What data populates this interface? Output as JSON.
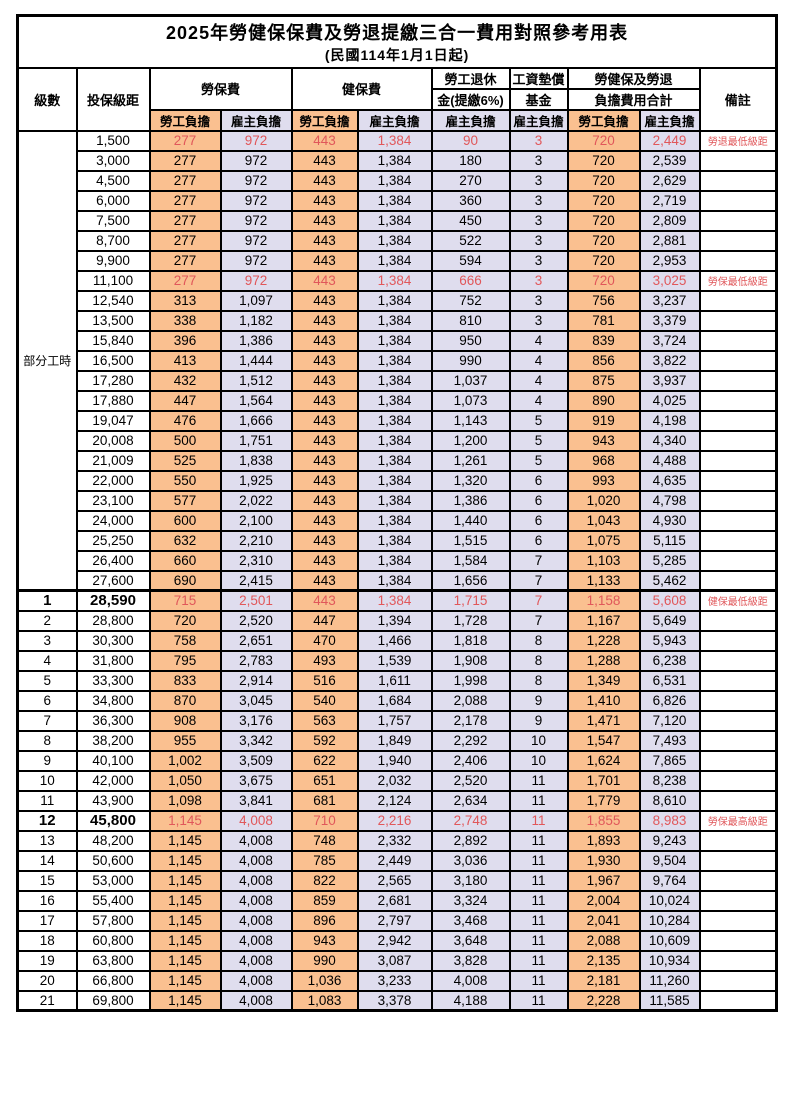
{
  "title": "2025年勞健保保費及勞退提繳三合一費用對照參考用表",
  "subtitle": "(民國114年1月1日起)",
  "headers": {
    "level": "級數",
    "bracket": "投保級距",
    "labor_fee": "勞保費",
    "health_fee": "健保費",
    "pension_line1": "勞工退休",
    "pension_line2": "金(提繳6%)",
    "wage_fund_line1": "工資墊償",
    "wage_fund_line2": "基金",
    "total_line1": "勞健保及勞退",
    "total_line2": "負擔費用合計",
    "note": "備註",
    "employee_share": "勞工負擔",
    "employer_share": "雇主負擔"
  },
  "part_time_label": "部分工時",
  "colors": {
    "employee_bg": "#FAC090",
    "employer_bg": "#DFDDEE",
    "highlight_text": "#E0575A"
  },
  "rows": [
    {
      "level": "",
      "bracket": "1,500",
      "values": [
        "277",
        "972",
        "443",
        "1,384",
        "90",
        "3",
        "720",
        "2,449"
      ],
      "note": "勞退最低級距",
      "highlight": true,
      "emph": false
    },
    {
      "level": "",
      "bracket": "3,000",
      "values": [
        "277",
        "972",
        "443",
        "1,384",
        "180",
        "3",
        "720",
        "2,539"
      ],
      "note": "",
      "highlight": false,
      "emph": false
    },
    {
      "level": "",
      "bracket": "4,500",
      "values": [
        "277",
        "972",
        "443",
        "1,384",
        "270",
        "3",
        "720",
        "2,629"
      ],
      "note": "",
      "highlight": false,
      "emph": false
    },
    {
      "level": "",
      "bracket": "6,000",
      "values": [
        "277",
        "972",
        "443",
        "1,384",
        "360",
        "3",
        "720",
        "2,719"
      ],
      "note": "",
      "highlight": false,
      "emph": false
    },
    {
      "level": "",
      "bracket": "7,500",
      "values": [
        "277",
        "972",
        "443",
        "1,384",
        "450",
        "3",
        "720",
        "2,809"
      ],
      "note": "",
      "highlight": false,
      "emph": false
    },
    {
      "level": "",
      "bracket": "8,700",
      "values": [
        "277",
        "972",
        "443",
        "1,384",
        "522",
        "3",
        "720",
        "2,881"
      ],
      "note": "",
      "highlight": false,
      "emph": false
    },
    {
      "level": "",
      "bracket": "9,900",
      "values": [
        "277",
        "972",
        "443",
        "1,384",
        "594",
        "3",
        "720",
        "2,953"
      ],
      "note": "",
      "highlight": false,
      "emph": false
    },
    {
      "level": "",
      "bracket": "11,100",
      "values": [
        "277",
        "972",
        "443",
        "1,384",
        "666",
        "3",
        "720",
        "3,025"
      ],
      "note": "勞保最低級距",
      "highlight": true,
      "emph": false
    },
    {
      "level": "",
      "bracket": "12,540",
      "values": [
        "313",
        "1,097",
        "443",
        "1,384",
        "752",
        "3",
        "756",
        "3,237"
      ],
      "note": "",
      "highlight": false,
      "emph": false
    },
    {
      "level": "",
      "bracket": "13,500",
      "values": [
        "338",
        "1,182",
        "443",
        "1,384",
        "810",
        "3",
        "781",
        "3,379"
      ],
      "note": "",
      "highlight": false,
      "emph": false
    },
    {
      "level": "",
      "bracket": "15,840",
      "values": [
        "396",
        "1,386",
        "443",
        "1,384",
        "950",
        "4",
        "839",
        "3,724"
      ],
      "note": "",
      "highlight": false,
      "emph": false
    },
    {
      "level": "",
      "bracket": "16,500",
      "values": [
        "413",
        "1,444",
        "443",
        "1,384",
        "990",
        "4",
        "856",
        "3,822"
      ],
      "note": "",
      "highlight": false,
      "emph": false
    },
    {
      "level": "",
      "bracket": "17,280",
      "values": [
        "432",
        "1,512",
        "443",
        "1,384",
        "1,037",
        "4",
        "875",
        "3,937"
      ],
      "note": "",
      "highlight": false,
      "emph": false
    },
    {
      "level": "",
      "bracket": "17,880",
      "values": [
        "447",
        "1,564",
        "443",
        "1,384",
        "1,073",
        "4",
        "890",
        "4,025"
      ],
      "note": "",
      "highlight": false,
      "emph": false
    },
    {
      "level": "",
      "bracket": "19,047",
      "values": [
        "476",
        "1,666",
        "443",
        "1,384",
        "1,143",
        "5",
        "919",
        "4,198"
      ],
      "note": "",
      "highlight": false,
      "emph": false
    },
    {
      "level": "",
      "bracket": "20,008",
      "values": [
        "500",
        "1,751",
        "443",
        "1,384",
        "1,200",
        "5",
        "943",
        "4,340"
      ],
      "note": "",
      "highlight": false,
      "emph": false
    },
    {
      "level": "",
      "bracket": "21,009",
      "values": [
        "525",
        "1,838",
        "443",
        "1,384",
        "1,261",
        "5",
        "968",
        "4,488"
      ],
      "note": "",
      "highlight": false,
      "emph": false
    },
    {
      "level": "",
      "bracket": "22,000",
      "values": [
        "550",
        "1,925",
        "443",
        "1,384",
        "1,320",
        "6",
        "993",
        "4,635"
      ],
      "note": "",
      "highlight": false,
      "emph": false
    },
    {
      "level": "",
      "bracket": "23,100",
      "values": [
        "577",
        "2,022",
        "443",
        "1,384",
        "1,386",
        "6",
        "1,020",
        "4,798"
      ],
      "note": "",
      "highlight": false,
      "emph": false
    },
    {
      "level": "",
      "bracket": "24,000",
      "values": [
        "600",
        "2,100",
        "443",
        "1,384",
        "1,440",
        "6",
        "1,043",
        "4,930"
      ],
      "note": "",
      "highlight": false,
      "emph": false
    },
    {
      "level": "",
      "bracket": "25,250",
      "values": [
        "632",
        "2,210",
        "443",
        "1,384",
        "1,515",
        "6",
        "1,075",
        "5,115"
      ],
      "note": "",
      "highlight": false,
      "emph": false
    },
    {
      "level": "",
      "bracket": "26,400",
      "values": [
        "660",
        "2,310",
        "443",
        "1,384",
        "1,584",
        "7",
        "1,103",
        "5,285"
      ],
      "note": "",
      "highlight": false,
      "emph": false
    },
    {
      "level": "",
      "bracket": "27,600",
      "values": [
        "690",
        "2,415",
        "443",
        "1,384",
        "1,656",
        "7",
        "1,133",
        "5,462"
      ],
      "note": "",
      "highlight": false,
      "emph": false
    },
    {
      "level": "1",
      "bracket": "28,590",
      "values": [
        "715",
        "2,501",
        "443",
        "1,384",
        "1,715",
        "7",
        "1,158",
        "5,608"
      ],
      "note": "健保最低級距",
      "highlight": true,
      "emph": true
    },
    {
      "level": "2",
      "bracket": "28,800",
      "values": [
        "720",
        "2,520",
        "447",
        "1,394",
        "1,728",
        "7",
        "1,167",
        "5,649"
      ],
      "note": "",
      "highlight": false,
      "emph": false
    },
    {
      "level": "3",
      "bracket": "30,300",
      "values": [
        "758",
        "2,651",
        "470",
        "1,466",
        "1,818",
        "8",
        "1,228",
        "5,943"
      ],
      "note": "",
      "highlight": false,
      "emph": false
    },
    {
      "level": "4",
      "bracket": "31,800",
      "values": [
        "795",
        "2,783",
        "493",
        "1,539",
        "1,908",
        "8",
        "1,288",
        "6,238"
      ],
      "note": "",
      "highlight": false,
      "emph": false
    },
    {
      "level": "5",
      "bracket": "33,300",
      "values": [
        "833",
        "2,914",
        "516",
        "1,611",
        "1,998",
        "8",
        "1,349",
        "6,531"
      ],
      "note": "",
      "highlight": false,
      "emph": false
    },
    {
      "level": "6",
      "bracket": "34,800",
      "values": [
        "870",
        "3,045",
        "540",
        "1,684",
        "2,088",
        "9",
        "1,410",
        "6,826"
      ],
      "note": "",
      "highlight": false,
      "emph": false
    },
    {
      "level": "7",
      "bracket": "36,300",
      "values": [
        "908",
        "3,176",
        "563",
        "1,757",
        "2,178",
        "9",
        "1,471",
        "7,120"
      ],
      "note": "",
      "highlight": false,
      "emph": false
    },
    {
      "level": "8",
      "bracket": "38,200",
      "values": [
        "955",
        "3,342",
        "592",
        "1,849",
        "2,292",
        "10",
        "1,547",
        "7,493"
      ],
      "note": "",
      "highlight": false,
      "emph": false
    },
    {
      "level": "9",
      "bracket": "40,100",
      "values": [
        "1,002",
        "3,509",
        "622",
        "1,940",
        "2,406",
        "10",
        "1,624",
        "7,865"
      ],
      "note": "",
      "highlight": false,
      "emph": false
    },
    {
      "level": "10",
      "bracket": "42,000",
      "values": [
        "1,050",
        "3,675",
        "651",
        "2,032",
        "2,520",
        "11",
        "1,701",
        "8,238"
      ],
      "note": "",
      "highlight": false,
      "emph": false
    },
    {
      "level": "11",
      "bracket": "43,900",
      "values": [
        "1,098",
        "3,841",
        "681",
        "2,124",
        "2,634",
        "11",
        "1,779",
        "8,610"
      ],
      "note": "",
      "highlight": false,
      "emph": false
    },
    {
      "level": "12",
      "bracket": "45,800",
      "values": [
        "1,145",
        "4,008",
        "710",
        "2,216",
        "2,748",
        "11",
        "1,855",
        "8,983"
      ],
      "note": "勞保最高級距",
      "highlight": true,
      "emph": true
    },
    {
      "level": "13",
      "bracket": "48,200",
      "values": [
        "1,145",
        "4,008",
        "748",
        "2,332",
        "2,892",
        "11",
        "1,893",
        "9,243"
      ],
      "note": "",
      "highlight": false,
      "emph": false
    },
    {
      "level": "14",
      "bracket": "50,600",
      "values": [
        "1,145",
        "4,008",
        "785",
        "2,449",
        "3,036",
        "11",
        "1,930",
        "9,504"
      ],
      "note": "",
      "highlight": false,
      "emph": false
    },
    {
      "level": "15",
      "bracket": "53,000",
      "values": [
        "1,145",
        "4,008",
        "822",
        "2,565",
        "3,180",
        "11",
        "1,967",
        "9,764"
      ],
      "note": "",
      "highlight": false,
      "emph": false
    },
    {
      "level": "16",
      "bracket": "55,400",
      "values": [
        "1,145",
        "4,008",
        "859",
        "2,681",
        "3,324",
        "11",
        "2,004",
        "10,024"
      ],
      "note": "",
      "highlight": false,
      "emph": false
    },
    {
      "level": "17",
      "bracket": "57,800",
      "values": [
        "1,145",
        "4,008",
        "896",
        "2,797",
        "3,468",
        "11",
        "2,041",
        "10,284"
      ],
      "note": "",
      "highlight": false,
      "emph": false
    },
    {
      "level": "18",
      "bracket": "60,800",
      "values": [
        "1,145",
        "4,008",
        "943",
        "2,942",
        "3,648",
        "11",
        "2,088",
        "10,609"
      ],
      "note": "",
      "highlight": false,
      "emph": false
    },
    {
      "level": "19",
      "bracket": "63,800",
      "values": [
        "1,145",
        "4,008",
        "990",
        "3,087",
        "3,828",
        "11",
        "2,135",
        "10,934"
      ],
      "note": "",
      "highlight": false,
      "emph": false
    },
    {
      "level": "20",
      "bracket": "66,800",
      "values": [
        "1,145",
        "4,008",
        "1,036",
        "3,233",
        "4,008",
        "11",
        "2,181",
        "11,260"
      ],
      "note": "",
      "highlight": false,
      "emph": false
    },
    {
      "level": "21",
      "bracket": "69,800",
      "values": [
        "1,145",
        "4,008",
        "1,083",
        "3,378",
        "4,188",
        "11",
        "2,228",
        "11,585"
      ],
      "note": "",
      "highlight": false,
      "emph": false
    }
  ]
}
